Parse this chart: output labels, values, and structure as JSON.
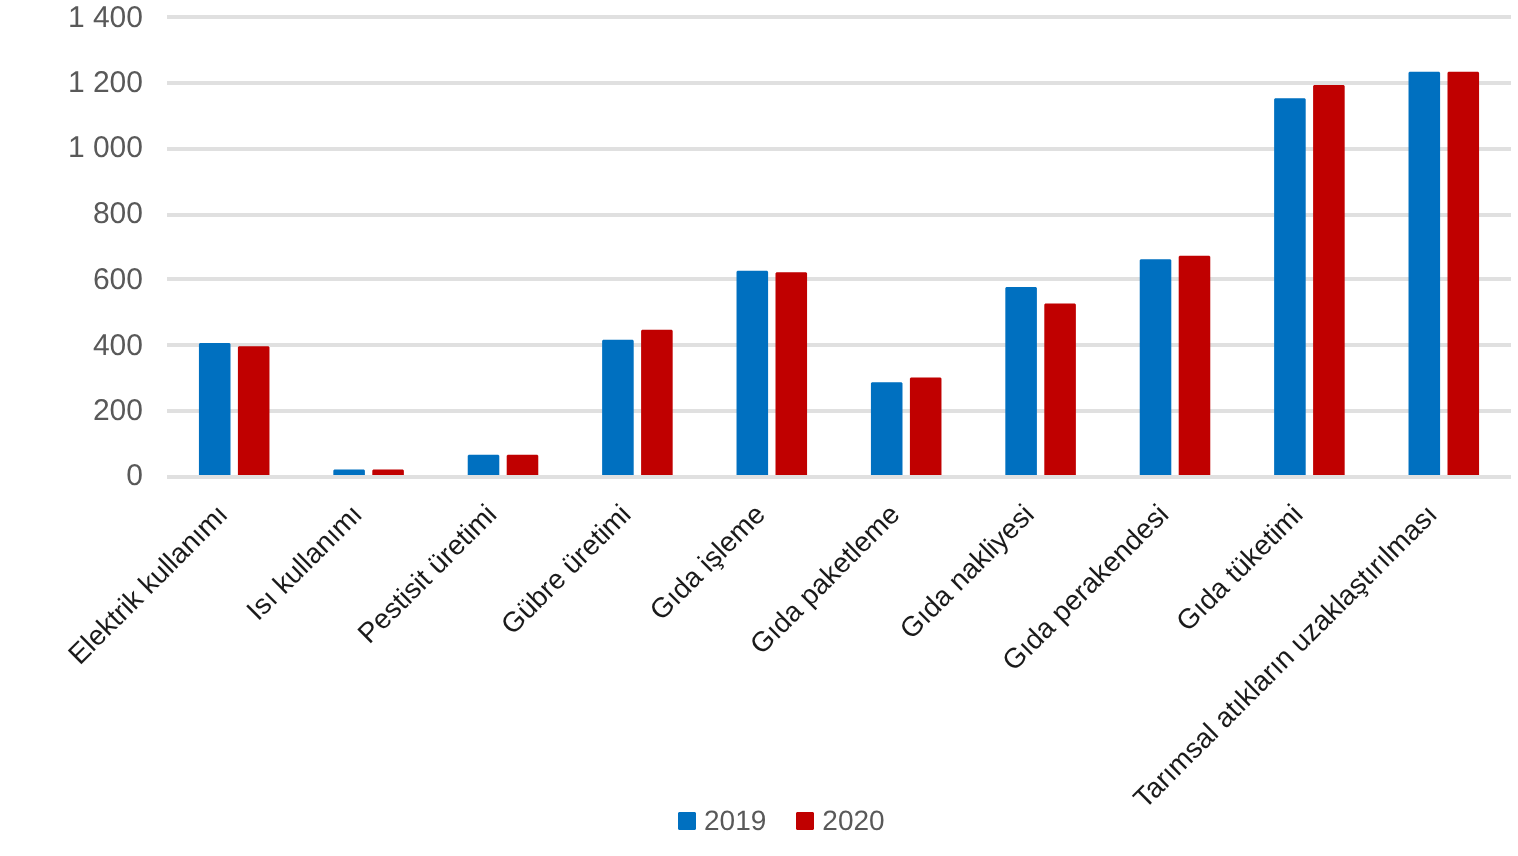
{
  "chart_data": {
    "type": "bar",
    "categories": [
      "Elektrik kullanımı",
      "Isı kullanımı",
      "Pestisit üretimi",
      "Gübre üretimi",
      "Gıda işleme",
      "Gıda paketleme",
      "Gıda nakliyesi",
      "Gıda perakendesi",
      "Gıda tüketimi",
      "Tarımsal atıkların uzaklaştırılması"
    ],
    "series": [
      {
        "name": "2019",
        "color": "#0070c0",
        "values": [
          405,
          20,
          65,
          415,
          625,
          285,
          575,
          660,
          1150,
          1230
        ]
      },
      {
        "name": "2020",
        "color": "#c00000",
        "values": [
          395,
          20,
          65,
          445,
          620,
          300,
          525,
          670,
          1190,
          1230
        ]
      }
    ],
    "ylim": [
      0,
      1400
    ],
    "yticks": [
      0,
      200,
      400,
      600,
      800,
      {
        "value": 1000,
        "label": "1 000"
      },
      {
        "value": 1200,
        "label": "1 200"
      },
      {
        "value": 1400,
        "label": "1 400"
      }
    ],
    "grid": "y",
    "legend": "bottom"
  }
}
